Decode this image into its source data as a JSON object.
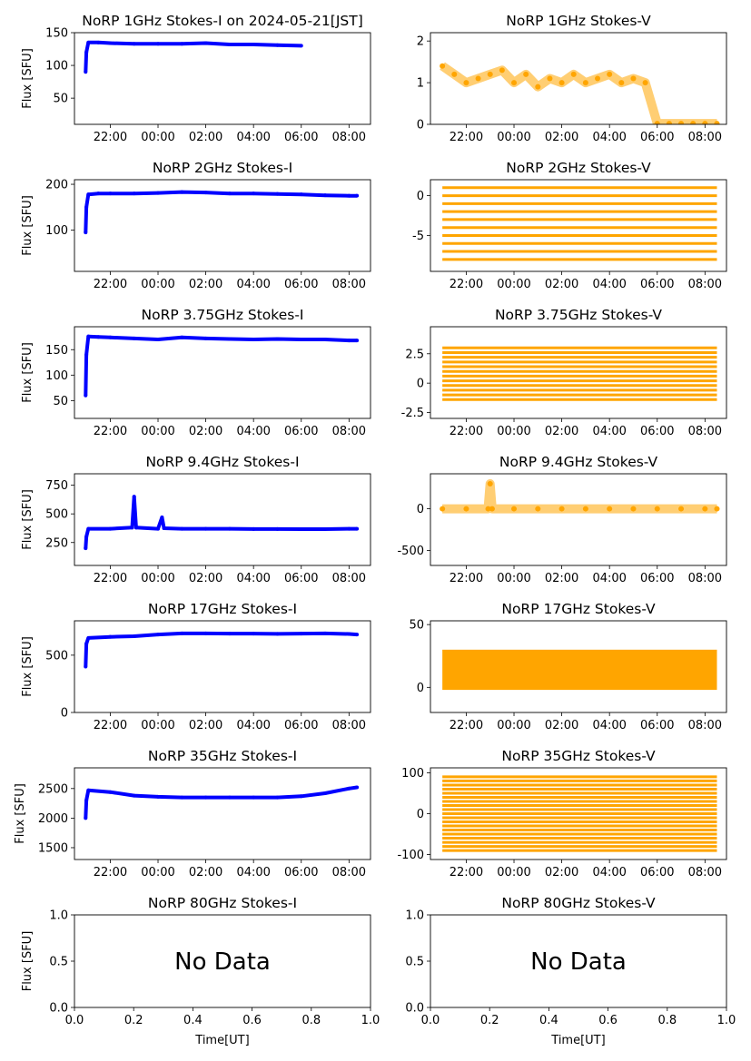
{
  "colors": {
    "stokes_i": "#0000ff",
    "stokes_v": "#ffa500",
    "axis": "#000000"
  },
  "chart_data": [
    {
      "type": "scatter",
      "title": "NoRP 1GHz Stokes-I on 2024-05-21[JST]",
      "ylabel": "Flux [SFU]",
      "xlabel": "",
      "ylim": [
        10,
        150
      ],
      "yticks": [
        50,
        100,
        150
      ],
      "xticks": [
        "22:00",
        "00:00",
        "02:00",
        "04:00",
        "06:00",
        "08:00"
      ],
      "series": [
        {
          "color": "#0000ff",
          "x": [
            "20:58",
            "21:00",
            "21:05",
            "21:30",
            "22:00",
            "23:00",
            "00:00",
            "01:00",
            "02:00",
            "03:00",
            "04:00",
            "05:00",
            "06:00"
          ],
          "y": [
            90,
            120,
            135,
            135,
            134,
            133,
            133,
            133,
            134,
            132,
            132,
            131,
            130
          ]
        }
      ]
    },
    {
      "type": "scatter",
      "title": "NoRP 1GHz Stokes-V",
      "ylabel": "",
      "xlabel": "",
      "ylim": [
        0,
        2.2
      ],
      "yticks": [
        0,
        1,
        2
      ],
      "xticks": [
        "22:00",
        "00:00",
        "02:00",
        "04:00",
        "06:00",
        "08:00"
      ],
      "series": [
        {
          "color": "#ffa500",
          "x": [
            "21:00",
            "21:30",
            "22:00",
            "22:30",
            "23:00",
            "23:30",
            "00:00",
            "00:30",
            "01:00",
            "01:30",
            "02:00",
            "02:30",
            "03:00",
            "03:30",
            "04:00",
            "04:30",
            "05:00",
            "05:30",
            "06:00",
            "06:30",
            "07:00",
            "07:30",
            "08:00",
            "08:30"
          ],
          "y": [
            1.4,
            1.2,
            1.0,
            1.1,
            1.2,
            1.3,
            1.0,
            1.2,
            0.9,
            1.1,
            1.0,
            1.2,
            1.0,
            1.1,
            1.2,
            1.0,
            1.1,
            1.0,
            0.02,
            0.02,
            0.02,
            0.02,
            0.02,
            0.02
          ]
        }
      ]
    },
    {
      "type": "scatter",
      "title": "NoRP 2GHz Stokes-I",
      "ylabel": "Flux [SFU]",
      "xlabel": "",
      "ylim": [
        10,
        210
      ],
      "yticks": [
        100,
        200
      ],
      "xticks": [
        "22:00",
        "00:00",
        "02:00",
        "04:00",
        "06:00",
        "08:00"
      ],
      "series": [
        {
          "color": "#0000ff",
          "x": [
            "20:58",
            "21:00",
            "21:05",
            "21:30",
            "22:00",
            "23:00",
            "00:00",
            "01:00",
            "02:00",
            "03:00",
            "04:00",
            "05:00",
            "06:00",
            "07:00",
            "08:00",
            "08:20"
          ],
          "y": [
            95,
            150,
            178,
            180,
            180,
            180,
            181,
            183,
            182,
            180,
            180,
            179,
            178,
            176,
            175,
            175
          ]
        }
      ]
    },
    {
      "type": "scatter",
      "title": "NoRP 2GHz Stokes-V",
      "ylabel": "",
      "xlabel": "",
      "ylim": [
        -9.5,
        2
      ],
      "yticks": [
        -5,
        0
      ],
      "xticks": [
        "22:00",
        "00:00",
        "02:00",
        "04:00",
        "06:00",
        "08:00"
      ],
      "bands": [
        1,
        0,
        -1,
        -2,
        -3,
        -4,
        -5,
        -6,
        -7,
        -8
      ]
    },
    {
      "type": "scatter",
      "title": "NoRP 3.75GHz Stokes-I",
      "ylabel": "Flux [SFU]",
      "xlabel": "",
      "ylim": [
        15,
        195
      ],
      "yticks": [
        50,
        100,
        150
      ],
      "xticks": [
        "22:00",
        "00:00",
        "02:00",
        "04:00",
        "06:00",
        "08:00"
      ],
      "series": [
        {
          "color": "#0000ff",
          "x": [
            "20:58",
            "21:00",
            "21:05",
            "21:30",
            "22:00",
            "23:00",
            "00:00",
            "01:00",
            "02:00",
            "03:00",
            "04:00",
            "05:00",
            "06:00",
            "07:00",
            "08:00",
            "08:20"
          ],
          "y": [
            60,
            140,
            176,
            175,
            174,
            172,
            170,
            174,
            172,
            171,
            170,
            171,
            170,
            170,
            168,
            168
          ]
        }
      ]
    },
    {
      "type": "scatter",
      "title": "NoRP 3.75GHz Stokes-V",
      "ylabel": "",
      "xlabel": "",
      "ylim": [
        -3,
        4.8
      ],
      "yticks": [
        -2.5,
        0.0,
        2.5
      ],
      "xticks": [
        "22:00",
        "00:00",
        "02:00",
        "04:00",
        "06:00",
        "08:00"
      ],
      "bands": [
        3.0,
        2.6,
        2.2,
        1.8,
        1.4,
        1.0,
        0.6,
        0.2,
        -0.2,
        -0.6,
        -1.0,
        -1.4
      ]
    },
    {
      "type": "scatter",
      "title": "NoRP 9.4GHz Stokes-I",
      "ylabel": "Flux [SFU]",
      "xlabel": "",
      "ylim": [
        50,
        850
      ],
      "yticks": [
        250,
        500,
        750
      ],
      "xticks": [
        "22:00",
        "00:00",
        "02:00",
        "04:00",
        "06:00",
        "08:00"
      ],
      "series": [
        {
          "color": "#0000ff",
          "x": [
            "20:58",
            "21:00",
            "21:05",
            "22:00",
            "22:55",
            "23:00",
            "23:05",
            "00:00",
            "00:10",
            "00:15",
            "01:00",
            "02:00",
            "03:00",
            "04:00",
            "05:00",
            "06:00",
            "07:00",
            "08:00",
            "08:20"
          ],
          "y": [
            200,
            300,
            370,
            370,
            380,
            650,
            380,
            370,
            470,
            375,
            370,
            370,
            370,
            368,
            368,
            367,
            367,
            370,
            370
          ]
        }
      ]
    },
    {
      "type": "scatter",
      "title": "NoRP 9.4GHz Stokes-V",
      "ylabel": "",
      "xlabel": "",
      "ylim": [
        -680,
        420
      ],
      "yticks": [
        -500,
        0
      ],
      "xticks": [
        "22:00",
        "00:00",
        "02:00",
        "04:00",
        "06:00",
        "08:00"
      ],
      "series": [
        {
          "color": "#ffa500",
          "x": [
            "21:00",
            "22:00",
            "22:55",
            "23:00",
            "23:05",
            "00:00",
            "01:00",
            "02:00",
            "03:00",
            "04:00",
            "05:00",
            "06:00",
            "07:00",
            "08:00",
            "08:30"
          ],
          "y": [
            0,
            0,
            0,
            300,
            0,
            0,
            0,
            0,
            0,
            0,
            0,
            0,
            0,
            0,
            0
          ]
        }
      ]
    },
    {
      "type": "scatter",
      "title": "NoRP 17GHz Stokes-I",
      "ylabel": "Flux [SFU]",
      "xlabel": "",
      "ylim": [
        0,
        800
      ],
      "yticks": [
        0,
        500
      ],
      "xticks": [
        "22:00",
        "00:00",
        "02:00",
        "04:00",
        "06:00",
        "08:00"
      ],
      "series": [
        {
          "color": "#0000ff",
          "x": [
            "20:58",
            "21:00",
            "21:05",
            "22:00",
            "23:00",
            "00:00",
            "01:00",
            "02:00",
            "03:00",
            "04:00",
            "05:00",
            "06:00",
            "07:00",
            "08:00",
            "08:20"
          ],
          "y": [
            400,
            600,
            650,
            660,
            665,
            680,
            690,
            690,
            688,
            688,
            686,
            688,
            690,
            685,
            680
          ]
        }
      ]
    },
    {
      "type": "scatter",
      "title": "NoRP 17GHz Stokes-V",
      "ylabel": "",
      "xlabel": "",
      "ylim": [
        -20,
        53
      ],
      "yticks": [
        0,
        50
      ],
      "xticks": [
        "22:00",
        "00:00",
        "02:00",
        "04:00",
        "06:00",
        "08:00"
      ],
      "band_range": [
        -2,
        30
      ]
    },
    {
      "type": "scatter",
      "title": "NoRP 35GHz Stokes-I",
      "ylabel": "Flux [SFU]",
      "xlabel": "",
      "ylim": [
        1300,
        2850
      ],
      "yticks": [
        1500,
        2000,
        2500
      ],
      "xticks": [
        "22:00",
        "00:00",
        "02:00",
        "04:00",
        "06:00",
        "08:00"
      ],
      "series": [
        {
          "color": "#0000ff",
          "x": [
            "20:58",
            "21:00",
            "21:05",
            "22:00",
            "23:00",
            "00:00",
            "01:00",
            "02:00",
            "03:00",
            "04:00",
            "05:00",
            "06:00",
            "07:00",
            "08:00",
            "08:20"
          ],
          "y": [
            2000,
            2300,
            2470,
            2440,
            2380,
            2360,
            2350,
            2350,
            2350,
            2350,
            2350,
            2370,
            2420,
            2500,
            2520
          ]
        }
      ]
    },
    {
      "type": "scatter",
      "title": "NoRP 35GHz Stokes-V",
      "ylabel": "",
      "xlabel": "",
      "ylim": [
        -112,
        112
      ],
      "yticks": [
        -100,
        0,
        100
      ],
      "xticks": [
        "22:00",
        "00:00",
        "02:00",
        "04:00",
        "06:00",
        "08:00"
      ],
      "bands": [
        90,
        80,
        70,
        60,
        50,
        40,
        30,
        20,
        10,
        0,
        -10,
        -20,
        -30,
        -40,
        -50,
        -60,
        -70,
        -80,
        -90
      ]
    },
    {
      "type": "scatter",
      "title": "NoRP 80GHz Stokes-I",
      "ylabel": "Flux [SFU]",
      "xlabel": "Time[UT]",
      "ylim": [
        0,
        1
      ],
      "yticks": [
        0.0,
        0.5,
        1.0
      ],
      "xticks": [
        "0.0",
        "0.2",
        "0.4",
        "0.6",
        "0.8",
        "1.0"
      ],
      "annotation": "No Data"
    },
    {
      "type": "scatter",
      "title": "NoRP 80GHz Stokes-V",
      "ylabel": "",
      "xlabel": "Time[UT]",
      "ylim": [
        0,
        1
      ],
      "yticks": [
        0.0,
        0.5,
        1.0
      ],
      "xticks": [
        "0.0",
        "0.2",
        "0.4",
        "0.6",
        "0.8",
        "1.0"
      ],
      "annotation": "No Data"
    }
  ]
}
